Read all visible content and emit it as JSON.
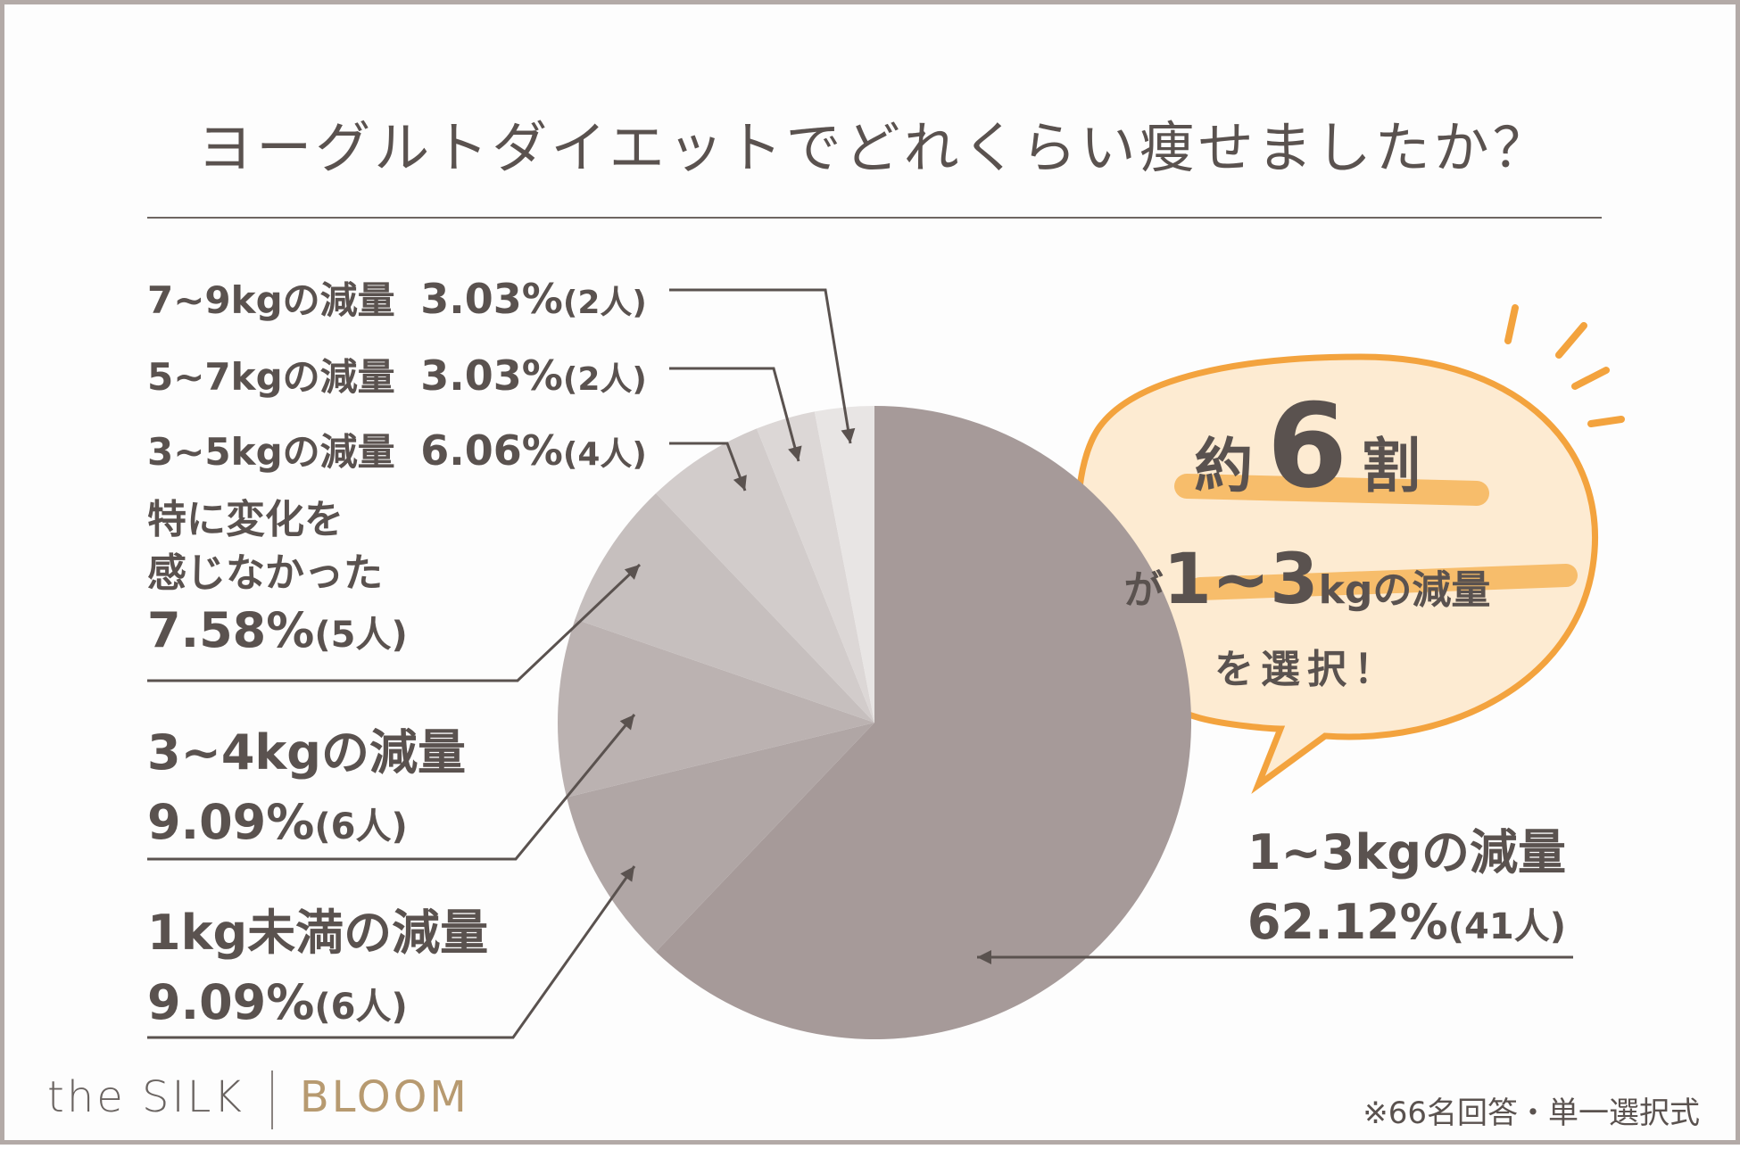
{
  "title": "ヨーグルトダイエットでどれくらい痩せましたか？",
  "chart_data": {
    "type": "pie",
    "slices": [
      {
        "label": "1~3kgの減量",
        "percent": 62.12,
        "count": "(41人)",
        "color": "#a69a99"
      },
      {
        "label": "1kg未満の減量",
        "percent": 9.09,
        "count": "(6人)",
        "color": "#b0a6a5"
      },
      {
        "label": "3~4kgの減量",
        "percent": 9.09,
        "count": "(6人)",
        "color": "#bbb2b1"
      },
      {
        "label": "特に変化を感じなかった",
        "percent": 7.58,
        "count": "(5人)",
        "color": "#c6bfbe"
      },
      {
        "label": "3~5kgの減量",
        "percent": 6.06,
        "count": "(4人)",
        "color": "#d2cccb"
      },
      {
        "label": "5~7kgの減量",
        "percent": 3.03,
        "count": "(2人)",
        "color": "#dcd7d6"
      },
      {
        "label": "7~9kgの減量",
        "percent": 3.03,
        "count": "(2人)",
        "color": "#e8e5e4"
      }
    ]
  },
  "labels": {
    "l79": {
      "name": "7~9kgの減量",
      "pct": "3.03%",
      "cnt": "(2人)"
    },
    "l57": {
      "name": "5~7kgの減量",
      "pct": "3.03%",
      "cnt": "(2人)"
    },
    "l35": {
      "name": "3~5kgの減量",
      "pct": "6.06%",
      "cnt": "(4人)"
    },
    "lnone": {
      "line1": "特に変化を",
      "line2": "感じなかった",
      "pct": "7.58%",
      "cnt": "(5人)"
    },
    "l34": {
      "name": "3~4kgの減量",
      "pct": "9.09%",
      "cnt": "(6人)"
    },
    "l1": {
      "name": "1kg未満の減量",
      "pct": "9.09%",
      "cnt": "(6人)"
    },
    "l13": {
      "name": "1~3kgの減量",
      "pct": "62.12%",
      "cnt": "(41人)"
    }
  },
  "bubble": {
    "pre": "約",
    "num": "6",
    "post": "割",
    "line2_a": "が",
    "line2_b": "1~3",
    "line2_c": "kgの減量",
    "line3": "を選択！"
  },
  "brand": {
    "left": "the SILK",
    "right": "BLOOM"
  },
  "note": "※66名回答・単一選択式",
  "colors": {
    "text": "#5a524f",
    "accent": "#f3a33e",
    "bubble_fill": "#fdebd2"
  }
}
